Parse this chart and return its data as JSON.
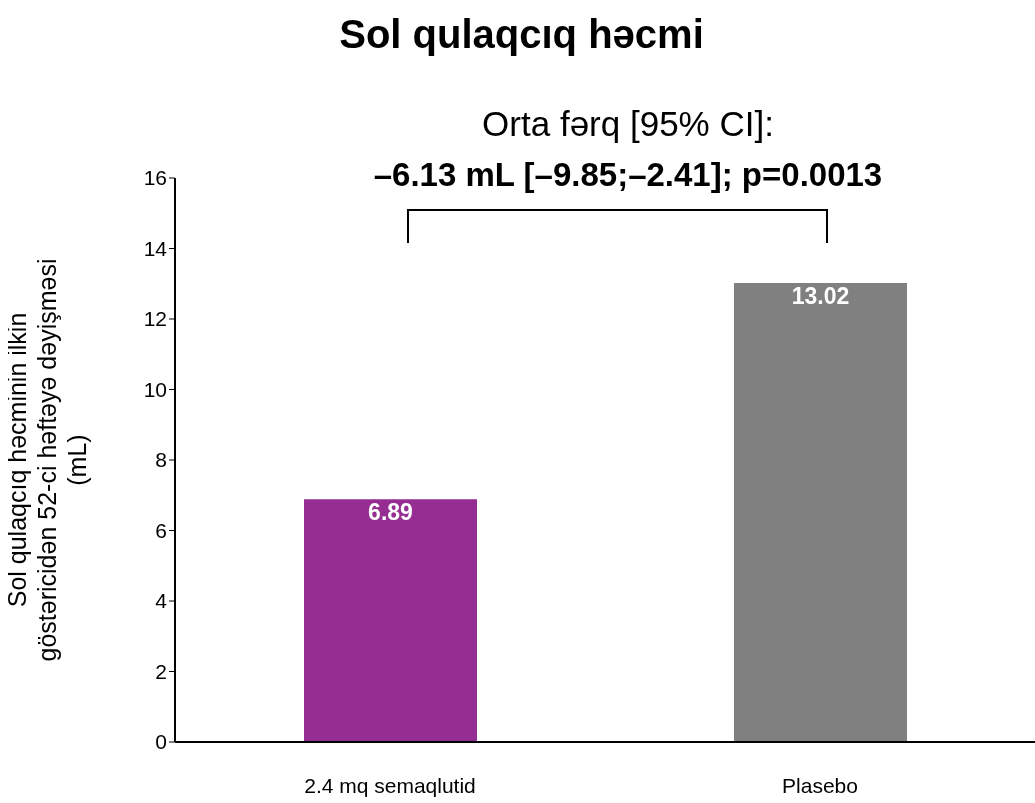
{
  "chart_data": {
    "type": "bar",
    "title": "Sol qulaqcıq həcmi",
    "ylabel": "Sol qulaqcıq həcminin ilkin göstəricidən 52-ci həftəyə dəyişməsi (mL)",
    "categories": [
      "2.4 mq semaqlutid",
      "Plasebo"
    ],
    "values": [
      6.89,
      13.02
    ],
    "colors": [
      "#952d93",
      "#808080"
    ],
    "ylim": [
      0,
      16
    ],
    "yticks": [
      0,
      2,
      4,
      6,
      8,
      10,
      12,
      14,
      16
    ],
    "grid": false,
    "data_labels": true,
    "annotations": [
      "Orta fərq [95% CI]:",
      "–6.13 mL [–9.85;–2.41]; p=0.0013"
    ]
  }
}
